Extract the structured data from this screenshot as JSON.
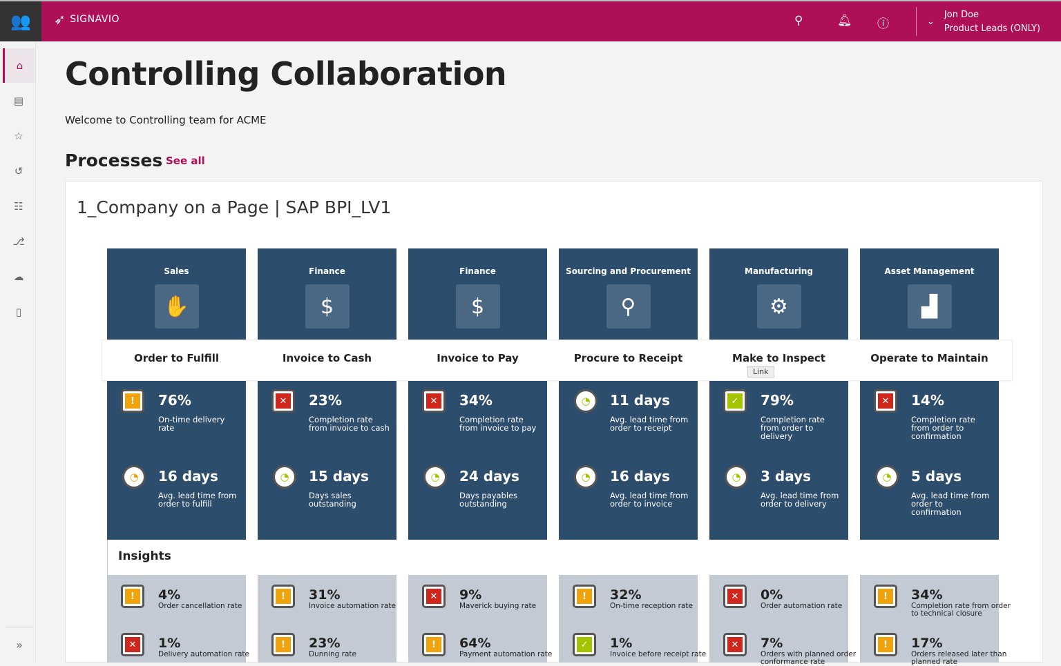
{
  "header": {
    "brand": "SIGNAVIO",
    "user_name": "Jon Doe",
    "user_role": "Product Leads (ONLY)",
    "icons": [
      "users-icon",
      "search-icon",
      "bell-icon",
      "help-icon",
      "chevron-down-icon"
    ]
  },
  "sidebar": {
    "items": [
      {
        "icon": "home-icon",
        "glyph": "⌂"
      },
      {
        "icon": "news-icon",
        "glyph": "▤"
      },
      {
        "icon": "star-icon",
        "glyph": "☆"
      },
      {
        "icon": "history-icon",
        "glyph": "↺"
      },
      {
        "icon": "checklist-icon",
        "glyph": "☷"
      },
      {
        "icon": "diagram-icon",
        "glyph": "⎇"
      },
      {
        "icon": "collaboration-icon",
        "glyph": "☁"
      },
      {
        "icon": "book-icon",
        "glyph": "▯"
      }
    ],
    "expand": "»"
  },
  "page": {
    "title": "Controlling Collaboration",
    "welcome": "Welcome to Controlling team for ACME",
    "processes_heading": "Processes",
    "see_all": "See all",
    "card_title": "1_Company on a Page | SAP BPI_LV1",
    "insights_heading": "Insights",
    "tooltip": "Link"
  },
  "colors": {
    "brand": "#ad1057",
    "tile": "#2c4d6c",
    "warning": "#f0a30a",
    "error": "#d0271d",
    "ok": "#a4c400",
    "insight_bg": "#c3cad3"
  },
  "columns": [
    {
      "category": "Sales",
      "icon": "hand-box-icon",
      "glyph": "✋",
      "process": "Order to Fulfill",
      "metrics": [
        {
          "status": "warning",
          "value": "76%",
          "label": "On-time delivery rate"
        },
        {
          "status": "gauge-orange",
          "value": "16 days",
          "label": "Avg. lead time from order to fulfill"
        }
      ],
      "insights": [
        {
          "status": "warning",
          "value": "4%",
          "label": "Order cancellation rate"
        },
        {
          "status": "error",
          "value": "1%",
          "label": "Delivery automation rate"
        }
      ]
    },
    {
      "category": "Finance",
      "icon": "invoice-dollar-icon",
      "glyph": "$",
      "process": "Invoice to Cash",
      "metrics": [
        {
          "status": "error",
          "value": "23%",
          "label": "Completion rate from invoice to cash"
        },
        {
          "status": "gauge-green",
          "value": "15 days",
          "label": "Days sales outstanding"
        }
      ],
      "insights": [
        {
          "status": "warning",
          "value": "31%",
          "label": "Invoice automation rate"
        },
        {
          "status": "warning",
          "value": "23%",
          "label": "Dunning rate"
        }
      ]
    },
    {
      "category": "Finance",
      "icon": "hand-money-icon",
      "glyph": "$",
      "process": "Invoice to Pay",
      "metrics": [
        {
          "status": "error",
          "value": "34%",
          "label": "Completion rate from invoice to pay"
        },
        {
          "status": "gauge-green",
          "value": "24 days",
          "label": "Days payables outstanding"
        }
      ],
      "insights": [
        {
          "status": "error",
          "value": "9%",
          "label": "Maverick buying rate"
        },
        {
          "status": "warning",
          "value": "64%",
          "label": "Payment automation rate"
        }
      ]
    },
    {
      "category": "Sourcing and Procurement",
      "icon": "search-dollar-icon",
      "glyph": "⚲",
      "process": "Procure to Receipt",
      "metrics": [
        {
          "status": "gauge-green",
          "value": "11 days",
          "label": "Avg. lead time from order to receipt"
        },
        {
          "status": "gauge-green",
          "value": "16 days",
          "label": "Avg. lead time from order to invoice"
        }
      ],
      "insights": [
        {
          "status": "warning",
          "value": "32%",
          "label": "On-time reception rate"
        },
        {
          "status": "ok",
          "value": "1%",
          "label": "Invoice before receipt rate"
        }
      ]
    },
    {
      "category": "Manufacturing",
      "icon": "robot-arm-icon",
      "glyph": "⚙",
      "process": "Make to Inspect",
      "metrics": [
        {
          "status": "ok",
          "value": "79%",
          "label": "Completion rate from order to delivery"
        },
        {
          "status": "gauge-green",
          "value": "3 days",
          "label": "Avg. lead time from order to delivery"
        }
      ],
      "insights": [
        {
          "status": "error",
          "value": "0%",
          "label": "Order automation rate"
        },
        {
          "status": "error",
          "value": "7%",
          "label": "Orders with planned order conformance rate"
        }
      ]
    },
    {
      "category": "Asset Management",
      "icon": "factory-icon",
      "glyph": "▟",
      "process": "Operate to Maintain",
      "metrics": [
        {
          "status": "error",
          "value": "14%",
          "label": "Completion rate from order to confirmation"
        },
        {
          "status": "gauge-green",
          "value": "5 days",
          "label": "Avg. lead time from order to confirmation"
        }
      ],
      "insights": [
        {
          "status": "warning",
          "value": "34%",
          "label": "Completion rate from order to technical closure"
        },
        {
          "status": "warning",
          "value": "17%",
          "label": "Orders released later than planned rate"
        }
      ]
    }
  ]
}
